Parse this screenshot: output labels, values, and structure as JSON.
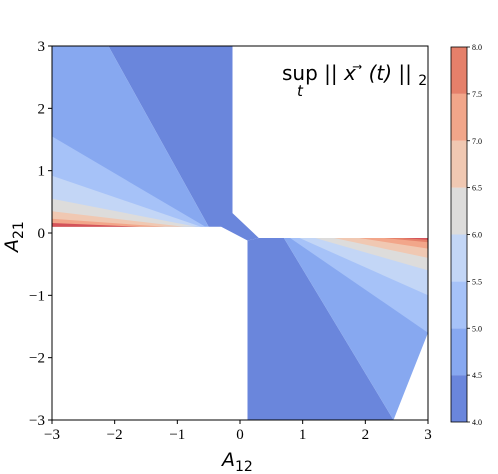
{
  "chart_data": {
    "type": "contour",
    "title": "",
    "annotation": {
      "op": "sup",
      "subscript": "t",
      "expr_pre": "||",
      "vec": "x",
      "arrow": "⃗",
      "arg": "(t)",
      "expr_post": "||",
      "norm_sub": "2"
    },
    "xlabel": {
      "base": "A",
      "sub": "12"
    },
    "ylabel": {
      "base": "A",
      "sub": "21"
    },
    "xlim": [
      -3,
      3
    ],
    "ylim": [
      -3,
      3
    ],
    "x_ticks": [
      -3,
      -2,
      -1,
      0,
      1,
      2,
      3
    ],
    "x_tick_labels": [
      "−3",
      "−2",
      "−1",
      "0",
      "1",
      "2",
      "3"
    ],
    "y_ticks": [
      -3,
      -2,
      -1,
      0,
      1,
      2,
      3
    ],
    "y_tick_labels": [
      "−3",
      "−2",
      "−1",
      "0",
      "1",
      "2",
      "3"
    ],
    "colorbar": {
      "levels": [
        4.0,
        4.5,
        5.0,
        5.5,
        6.0,
        6.5,
        7.0,
        7.5,
        8.0
      ],
      "tick_labels": [
        "4.0",
        "4.5",
        "5.0",
        "5.5",
        "6.0",
        "6.5",
        "7.0",
        "7.5",
        "8.0"
      ],
      "colors": [
        "#6a86dc",
        "#87a8f0",
        "#a6c2f8",
        "#c3d6f6",
        "#dddcdb",
        "#f0c8b2",
        "#f2a68a",
        "#e5806a",
        "#d4535a"
      ]
    },
    "regions": [
      {
        "name": "upper-left-4.0",
        "color_index": 0,
        "points": [
          [
            -2.1,
            3
          ],
          [
            -0.12,
            3
          ],
          [
            -0.12,
            0.32
          ],
          [
            0.3,
            -0.08
          ],
          [
            0.12,
            -0.12
          ],
          [
            -0.3,
            0.1
          ],
          [
            -0.5,
            0.1
          ]
        ]
      },
      {
        "name": "upper-left-4.5",
        "color_index": 1,
        "points": [
          [
            -3,
            3
          ],
          [
            -2.1,
            3
          ],
          [
            -0.5,
            0.1
          ],
          [
            -3,
            0.1
          ],
          [
            -3,
            1.55
          ]
        ]
      },
      {
        "name": "upper-left-5.0",
        "color_index": 2,
        "points": [
          [
            -3,
            1.55
          ],
          [
            -0.55,
            0.1
          ],
          [
            -3,
            0.1
          ],
          [
            -3,
            0.92
          ]
        ]
      },
      {
        "name": "upper-left-5.5",
        "color_index": 3,
        "points": [
          [
            -3,
            0.92
          ],
          [
            -0.62,
            0.1
          ],
          [
            -3,
            0.1
          ],
          [
            -3,
            0.55
          ]
        ]
      },
      {
        "name": "upper-left-6.0",
        "color_index": 4,
        "points": [
          [
            -3,
            0.55
          ],
          [
            -0.7,
            0.1
          ],
          [
            -3,
            0.1
          ],
          [
            -3,
            0.35
          ]
        ]
      },
      {
        "name": "upper-left-6.5",
        "color_index": 5,
        "points": [
          [
            -3,
            0.35
          ],
          [
            -0.9,
            0.1
          ],
          [
            -3,
            0.1
          ],
          [
            -3,
            0.23
          ]
        ]
      },
      {
        "name": "upper-left-7.0",
        "color_index": 6,
        "points": [
          [
            -3,
            0.23
          ],
          [
            -1.2,
            0.1
          ],
          [
            -3,
            0.1
          ],
          [
            -3,
            0.16
          ]
        ]
      },
      {
        "name": "upper-left-8.0",
        "color_index": 8,
        "points": [
          [
            -3,
            0.16
          ],
          [
            -1.6,
            0.1
          ],
          [
            -3,
            0.1
          ]
        ]
      },
      {
        "name": "lower-right-4.0",
        "color_index": 0,
        "points": [
          [
            0.12,
            -0.12
          ],
          [
            0.3,
            -0.08
          ],
          [
            0.7,
            -0.08
          ],
          [
            2.45,
            -3
          ],
          [
            0.12,
            -3
          ]
        ]
      },
      {
        "name": "lower-right-4.5",
        "color_index": 1,
        "points": [
          [
            0.7,
            -0.08
          ],
          [
            3,
            -0.08
          ],
          [
            3,
            -1.6
          ],
          [
            2.45,
            -3
          ]
        ]
      },
      {
        "name": "lower-right-5.0",
        "color_index": 2,
        "points": [
          [
            0.8,
            -0.08
          ],
          [
            3,
            -0.08
          ],
          [
            3,
            -1.6
          ]
        ]
      },
      {
        "name": "lower-right-5.5",
        "color_index": 3,
        "points": [
          [
            0.95,
            -0.08
          ],
          [
            3,
            -0.08
          ],
          [
            3,
            -1.0
          ]
        ]
      },
      {
        "name": "lower-right-6.0",
        "color_index": 4,
        "points": [
          [
            1.2,
            -0.08
          ],
          [
            3,
            -0.08
          ],
          [
            3,
            -0.6
          ]
        ]
      },
      {
        "name": "lower-right-6.5",
        "color_index": 5,
        "points": [
          [
            1.5,
            -0.08
          ],
          [
            3,
            -0.08
          ],
          [
            3,
            -0.4
          ]
        ]
      },
      {
        "name": "lower-right-7.0",
        "color_index": 6,
        "points": [
          [
            1.9,
            -0.08
          ],
          [
            3,
            -0.08
          ],
          [
            3,
            -0.25
          ]
        ]
      },
      {
        "name": "lower-right-7.5",
        "color_index": 7,
        "points": [
          [
            2.3,
            -0.08
          ],
          [
            3,
            -0.08
          ],
          [
            3,
            -0.15
          ]
        ]
      },
      {
        "name": "lower-right-8.0",
        "color_index": 8,
        "points": [
          [
            2.6,
            -0.08
          ],
          [
            3,
            -0.08
          ],
          [
            3,
            -0.11
          ]
        ]
      }
    ]
  }
}
